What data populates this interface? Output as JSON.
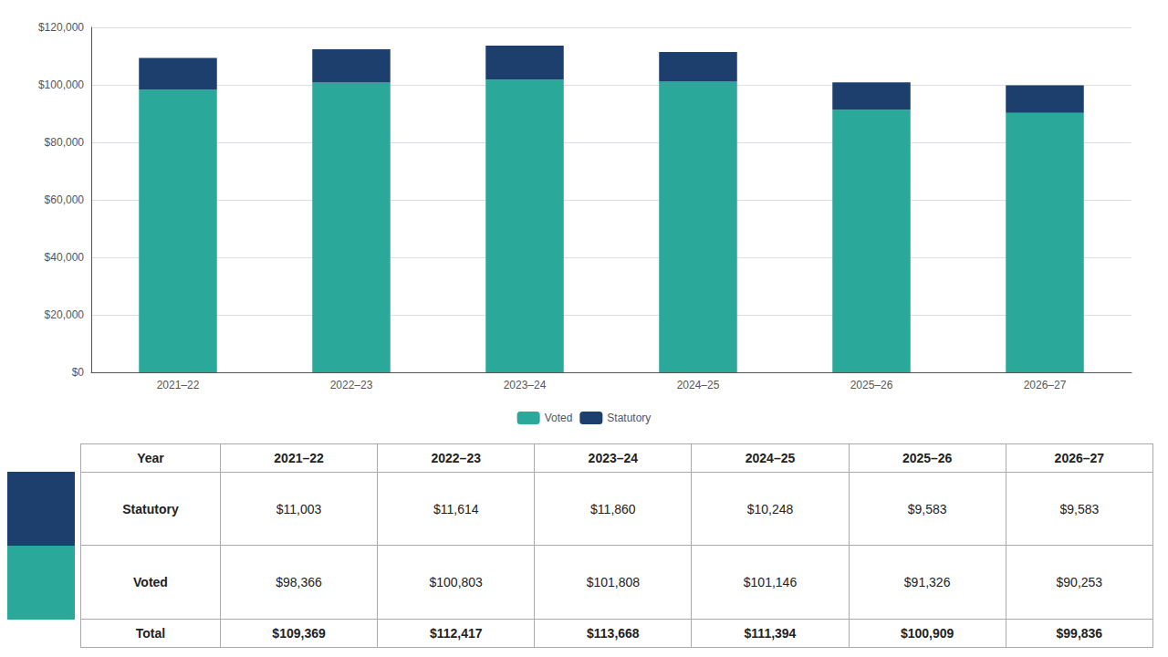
{
  "chart_data": {
    "type": "bar",
    "stacked": true,
    "categories": [
      "2021–22",
      "2022–23",
      "2023–24",
      "2024–25",
      "2025–26",
      "2026–27"
    ],
    "series": [
      {
        "name": "Voted",
        "color": "#2aa89a",
        "values": [
          98366,
          100803,
          101808,
          101146,
          91326,
          90253
        ]
      },
      {
        "name": "Statutory",
        "color": "#1c3f6e",
        "values": [
          11003,
          11614,
          11860,
          10248,
          9583,
          9583
        ]
      }
    ],
    "ylim": [
      0,
      120000
    ],
    "yticks": [
      {
        "value": 0,
        "label": "$0"
      },
      {
        "value": 20000,
        "label": "$20,000"
      },
      {
        "value": 40000,
        "label": "$40,000"
      },
      {
        "value": 60000,
        "label": "$60,000"
      },
      {
        "value": 80000,
        "label": "$80,000"
      },
      {
        "value": 100000,
        "label": "$100,000"
      },
      {
        "value": 120000,
        "label": "$120,000"
      }
    ],
    "grid": true,
    "legend": "bottom",
    "table": {
      "header": "Year",
      "rows": [
        {
          "label": "Statutory",
          "cells": [
            "$11,003",
            "$11,614",
            "$11,860",
            "$10,248",
            "$9,583",
            "$9,583"
          ]
        },
        {
          "label": "Voted",
          "cells": [
            "$98,366",
            "$100,803",
            "$101,808",
            "$101,146",
            "$91,326",
            "$90,253"
          ]
        },
        {
          "label": "Total",
          "cells": [
            "$109,369",
            "$112,417",
            "$113,668",
            "$111,394",
            "$100,909",
            "$99,836"
          ]
        }
      ]
    }
  }
}
